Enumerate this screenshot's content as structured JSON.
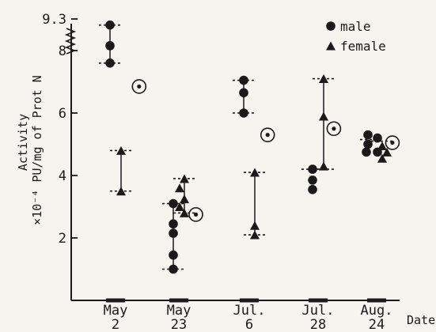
{
  "chart_data": {
    "type": "scatter",
    "title": "",
    "xlabel": "Date",
    "ylabel_line1": "Activity",
    "ylabel_line2": "×10⁻⁴ PU/mg of Prot N",
    "ylim": [
      0,
      9.3
    ],
    "y_ticks": [
      {
        "value": 2,
        "label": "2"
      },
      {
        "value": 4,
        "label": "4"
      },
      {
        "value": 6,
        "label": "6"
      },
      {
        "value": 8,
        "label": "8"
      },
      {
        "value": 9.3,
        "label": "9.3"
      }
    ],
    "axis_break": "between 8 and 9.3",
    "categories": [
      {
        "line1": "May",
        "line2": "2"
      },
      {
        "line1": "May",
        "line2": "23"
      },
      {
        "line1": "Jul.",
        "line2": "6"
      },
      {
        "line1": "Jul.",
        "line2": "28"
      },
      {
        "line1": "Aug.",
        "line2": "24"
      }
    ],
    "legend": {
      "placement": "top-right",
      "entries": [
        {
          "marker": "circle",
          "label": "male"
        },
        {
          "marker": "triangle",
          "label": "female"
        }
      ]
    },
    "series": [
      {
        "name": "male",
        "marker": "filled-circle",
        "points": [
          {
            "date_index": 0,
            "values": [
              9.05,
              8.2,
              7.6
            ]
          },
          {
            "date_index": 1,
            "values": [
              3.1,
              2.45,
              2.15,
              1.45,
              1.0
            ]
          },
          {
            "date_index": 2,
            "values": [
              7.05,
              6.65,
              6.0
            ]
          },
          {
            "date_index": 3,
            "values": [
              4.2,
              3.85,
              3.55
            ]
          },
          {
            "date_index": 4,
            "values": [
              5.3,
              5.2,
              5.0,
              4.75,
              4.75
            ]
          }
        ],
        "range_bars": [
          {
            "date_index": 0,
            "min": 7.6,
            "max": 9.05
          },
          {
            "date_index": 1,
            "min": 1.0,
            "max": 3.1
          },
          {
            "date_index": 2,
            "min": 6.0,
            "max": 7.05
          },
          {
            "date_index": 3,
            "min": 4.2,
            "max": 4.2
          },
          {
            "date_index": 4,
            "min": 5.15,
            "max": 5.15
          }
        ]
      },
      {
        "name": "female",
        "marker": "filled-triangle",
        "points": [
          {
            "date_index": 0,
            "values": [
              4.8,
              3.5
            ]
          },
          {
            "date_index": 1,
            "values": [
              3.9,
              3.6,
              3.25,
              3.0,
              2.8
            ]
          },
          {
            "date_index": 2,
            "values": [
              4.1,
              2.4,
              2.1
            ]
          },
          {
            "date_index": 3,
            "values": [
              7.1,
              5.9,
              4.3
            ]
          },
          {
            "date_index": 4,
            "values": [
              4.95,
              4.75,
              4.55
            ]
          }
        ],
        "range_bars": [
          {
            "date_index": 0,
            "min": 3.5,
            "max": 4.8
          },
          {
            "date_index": 1,
            "min": 2.8,
            "max": 3.9
          },
          {
            "date_index": 2,
            "min": 2.1,
            "max": 4.1
          },
          {
            "date_index": 3,
            "min": 4.2,
            "max": 7.1
          },
          {
            "date_index": 4,
            "min": 5.1,
            "max": 5.1
          }
        ]
      },
      {
        "name": "mean",
        "marker": "dotted-circle",
        "points": [
          {
            "date_index": 0,
            "x_offset": 0.6,
            "value": 6.85
          },
          {
            "date_index": 1,
            "x_offset": 0.35,
            "value": 2.75
          },
          {
            "date_index": 2,
            "x_offset": 0.4,
            "value": 5.3
          },
          {
            "date_index": 3,
            "x_offset": 0.3,
            "value": 5.5
          },
          {
            "date_index": 4,
            "x_offset": 0.3,
            "value": 5.05
          }
        ]
      }
    ]
  }
}
